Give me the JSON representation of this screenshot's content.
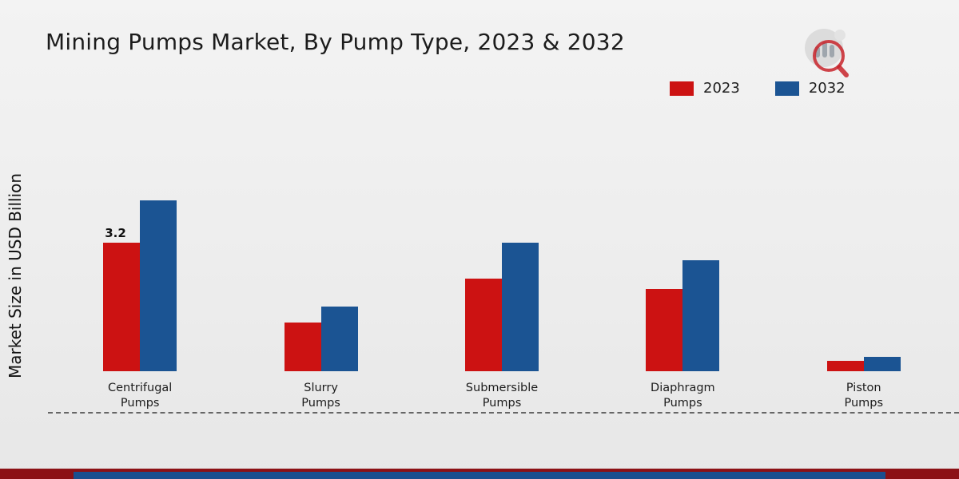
{
  "title": "Mining Pumps Market, By Pump Type, 2023 & 2032",
  "y_axis_label": "Market Size in USD Billion",
  "legend": [
    {
      "label": "2023",
      "color": "#cc1212"
    },
    {
      "label": "2032",
      "color": "#1b5493"
    }
  ],
  "chart_data": {
    "type": "bar",
    "title": "Mining Pumps Market, By Pump Type, 2023 & 2032",
    "ylabel": "Market Size in USD Billion",
    "categories": [
      "Centrifugal\nPumps",
      "Slurry\nPumps",
      "Submersible\nPumps",
      "Diaphragm\nPumps",
      "Piston\nPumps"
    ],
    "series": [
      {
        "name": "2023",
        "color": "#cc1212",
        "values": [
          3.2,
          1.2,
          2.3,
          2.05,
          0.25
        ],
        "labels": [
          "3.2",
          null,
          null,
          null,
          null
        ]
      },
      {
        "name": "2032",
        "color": "#1b5493",
        "values": [
          4.25,
          1.6,
          3.2,
          2.75,
          0.35
        ],
        "labels": [
          null,
          null,
          null,
          null,
          null
        ]
      }
    ],
    "ylim": [
      0,
      4.6
    ],
    "grid": false,
    "legend_position": "top-right",
    "baseline_style": "dashed",
    "y_axis_ticks": "none"
  },
  "footer": {
    "ribbon_red": "#8c1116",
    "ribbon_blue": "#1b4f8f"
  }
}
